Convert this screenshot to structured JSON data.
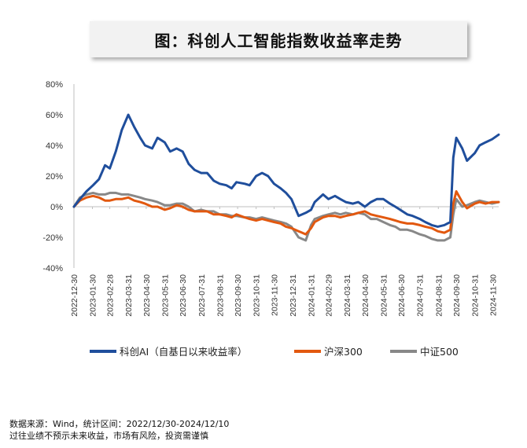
{
  "title": "图：科创人工智能指数收益率走势",
  "footnote": {
    "line1": "数据来源：Wind，统计区间：2022/12/30-2024/12/10",
    "line2": "过往业绩不预示未来收益，市场有风险，投资需谨慎"
  },
  "chart_data": {
    "type": "line",
    "title": "",
    "xlabel": "",
    "ylabel": "",
    "ylim": [
      -40,
      80
    ],
    "yticks": [
      -40,
      -20,
      0,
      20,
      40,
      60,
      80
    ],
    "ytick_labels": [
      "-40%",
      "-20%",
      "0%",
      "20%",
      "40%",
      "60%",
      "80%"
    ],
    "x_tick_labels": [
      "2022-12-30",
      "2023-01-30",
      "2023-02-28",
      "2023-03-31",
      "2023-04-30",
      "2023-05-31",
      "2023-06-30",
      "2023-07-31",
      "2023-08-31",
      "2023-09-30",
      "2023-10-31",
      "2023-11-30",
      "2023-12-31",
      "2024-01-31",
      "2024-02-29",
      "2024-03-31",
      "2024-04-30",
      "2024-05-31",
      "2024-06-30",
      "2024-07-31",
      "2024-08-31",
      "2024-09-30",
      "2024-10-31",
      "2024-11-30"
    ],
    "x_range": [
      "2022-12-30",
      "2024-12-10"
    ],
    "grid": false,
    "legend_position": "bottom",
    "dates": [
      "2022-12-30",
      "2023-01-09",
      "2023-01-20",
      "2023-01-31",
      "2023-02-10",
      "2023-02-20",
      "2023-02-28",
      "2023-03-10",
      "2023-03-20",
      "2023-03-31",
      "2023-04-10",
      "2023-04-20",
      "2023-04-28",
      "2023-05-10",
      "2023-05-19",
      "2023-05-31",
      "2023-06-09",
      "2023-06-20",
      "2023-06-30",
      "2023-07-10",
      "2023-07-20",
      "2023-07-31",
      "2023-08-10",
      "2023-08-21",
      "2023-08-31",
      "2023-09-11",
      "2023-09-20",
      "2023-09-28",
      "2023-10-12",
      "2023-10-20",
      "2023-10-31",
      "2023-11-10",
      "2023-11-20",
      "2023-11-30",
      "2023-12-11",
      "2023-12-20",
      "2023-12-29",
      "2024-01-10",
      "2024-01-22",
      "2024-01-31",
      "2024-02-06",
      "2024-02-20",
      "2024-02-29",
      "2024-03-11",
      "2024-03-20",
      "2024-03-29",
      "2024-04-10",
      "2024-04-19",
      "2024-04-30",
      "2024-05-10",
      "2024-05-20",
      "2024-05-31",
      "2024-06-11",
      "2024-06-20",
      "2024-06-28",
      "2024-07-10",
      "2024-07-19",
      "2024-07-31",
      "2024-08-09",
      "2024-08-20",
      "2024-08-30",
      "2024-09-10",
      "2024-09-20",
      "2024-09-25",
      "2024-09-30",
      "2024-10-10",
      "2024-10-18",
      "2024-10-31",
      "2024-11-08",
      "2024-11-18",
      "2024-11-29",
      "2024-12-10"
    ],
    "series": [
      {
        "name": "科创AI（自基日以来收益率）",
        "color": "#1f4e9c",
        "values": [
          0,
          5,
          10,
          14,
          18,
          27,
          25,
          36,
          50,
          60,
          52,
          45,
          40,
          38,
          45,
          42,
          36,
          38,
          36,
          28,
          24,
          22,
          22,
          17,
          15,
          14,
          12,
          16,
          15,
          14,
          20,
          22,
          20,
          15,
          12,
          9,
          5,
          -6,
          -4,
          -2,
          3,
          8,
          5,
          7,
          5,
          3,
          2,
          3,
          0,
          3,
          5,
          5,
          2,
          0,
          -2,
          -5,
          -6,
          -8,
          -10,
          -12,
          -13,
          -12,
          -10,
          32,
          45,
          38,
          30,
          35,
          40,
          42,
          44,
          47
        ]
      },
      {
        "name": "沪深300",
        "color": "#e2580f",
        "values": [
          0,
          4,
          6,
          7,
          6,
          4,
          4,
          5,
          5,
          6,
          4,
          3,
          2,
          0,
          0,
          -2,
          -1,
          1,
          0,
          -2,
          -3,
          -3,
          -3,
          -5,
          -5,
          -6,
          -7,
          -5,
          -7,
          -8,
          -9,
          -8,
          -9,
          -10,
          -11,
          -13,
          -14,
          -16,
          -18,
          -14,
          -10,
          -7,
          -6,
          -6,
          -7,
          -6,
          -5,
          -4,
          -3,
          -5,
          -6,
          -7,
          -8,
          -9,
          -10,
          -11,
          -11,
          -12,
          -13,
          -14,
          -16,
          -17,
          -15,
          2,
          10,
          3,
          -1,
          2,
          3,
          2,
          3,
          3
        ]
      },
      {
        "name": "中证500",
        "color": "#888888",
        "values": [
          0,
          6,
          8,
          9,
          8,
          8,
          9,
          9,
          8,
          8,
          7,
          6,
          5,
          4,
          3,
          1,
          1,
          2,
          2,
          0,
          -3,
          -2,
          -3,
          -3,
          -5,
          -5,
          -6,
          -6,
          -7,
          -7,
          -8,
          -7,
          -8,
          -9,
          -10,
          -11,
          -13,
          -20,
          -22,
          -12,
          -8,
          -6,
          -5,
          -4,
          -5,
          -4,
          -5,
          -4,
          -5,
          -8,
          -8,
          -10,
          -12,
          -13,
          -15,
          -15,
          -16,
          -18,
          -19,
          -21,
          -22,
          -22,
          -20,
          -5,
          5,
          0,
          1,
          3,
          4,
          3,
          2,
          3
        ]
      }
    ]
  }
}
